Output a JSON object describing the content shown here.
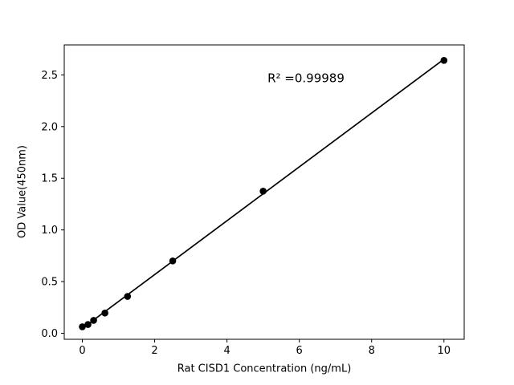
{
  "figure": {
    "background_color": "#ffffff",
    "foreground_color": "#000000"
  },
  "chart_data": {
    "type": "scatter",
    "title": "",
    "xlabel": "Rat CISD1 Concentration (ng/mL)",
    "ylabel": "OD Value(450nm)",
    "annotation": "R² =0.99989",
    "x": [
      0,
      0.156,
      0.3125,
      0.625,
      1.25,
      2.5,
      5,
      10
    ],
    "y": [
      0.063,
      0.085,
      0.125,
      0.196,
      0.357,
      0.7,
      1.375,
      2.64
    ],
    "fit_line": {
      "x": [
        0,
        10
      ],
      "y": [
        0.047,
        2.652
      ]
    },
    "xticks": {
      "values": [
        0,
        2,
        4,
        6,
        8,
        10
      ],
      "labels": [
        "0",
        "2",
        "4",
        "6",
        "8",
        "10"
      ]
    },
    "yticks": {
      "values": [
        0,
        0.5,
        1.0,
        1.5,
        2.0,
        2.5
      ],
      "labels": [
        "0.0",
        "0.5",
        "1.0",
        "1.5",
        "2.0",
        "2.5"
      ]
    },
    "xlim": [
      -0.5,
      10.56
    ],
    "ylim": [
      -0.058,
      2.79
    ],
    "grid": false,
    "legend": null,
    "marker_color": "#000000",
    "line_color": "#000000"
  }
}
